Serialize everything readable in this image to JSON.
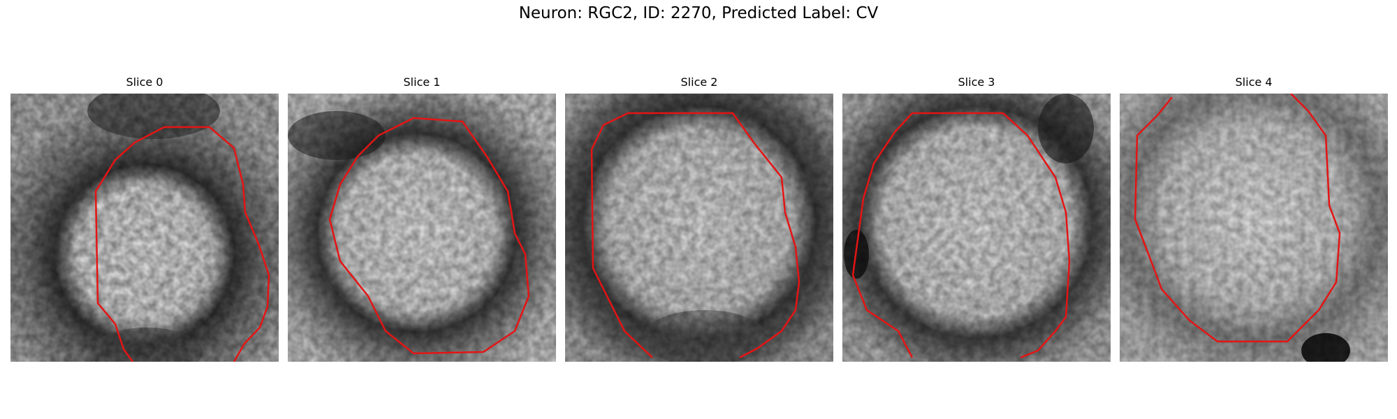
{
  "figure": {
    "title": "Neuron: RGC2, ID: 2270, Predicted Label: CV"
  },
  "panels": [
    {
      "title": "Slice 0",
      "image": "grayscale cell slice with red contour",
      "contour_color": "#e51414"
    },
    {
      "title": "Slice 1",
      "image": "grayscale cell slice with red contour",
      "contour_color": "#e51414"
    },
    {
      "title": "Slice 2",
      "image": "grayscale cell slice with red contour",
      "contour_color": "#e51414"
    },
    {
      "title": "Slice 3",
      "image": "grayscale cell slice with red contour",
      "contour_color": "#e51414"
    },
    {
      "title": "Slice 4",
      "image": "grayscale cell slice with red contour",
      "contour_color": "#e51414"
    }
  ]
}
